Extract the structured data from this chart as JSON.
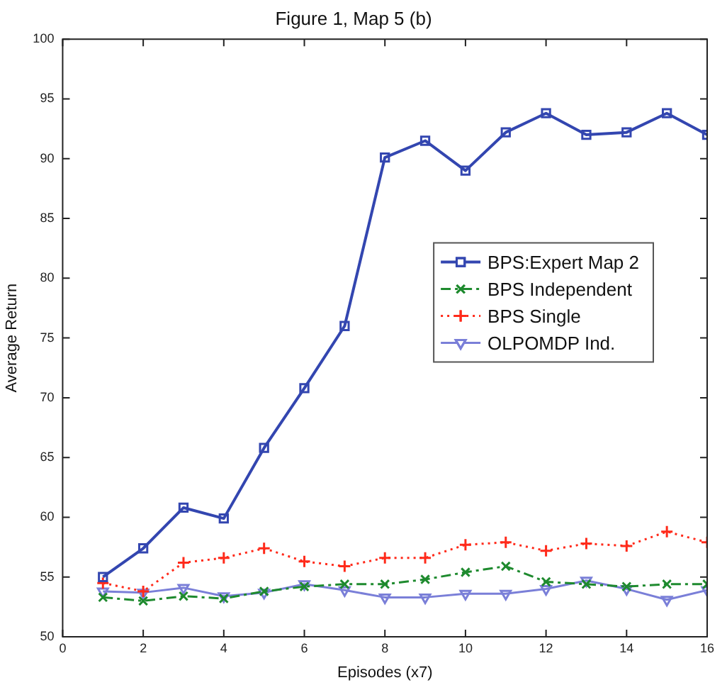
{
  "chart_data": {
    "type": "line",
    "title": "Figure 1, Map 5 (b)",
    "xlabel": "Episodes (x7)",
    "ylabel": "Average Return",
    "x": [
      1,
      2,
      3,
      4,
      5,
      6,
      7,
      8,
      9,
      10,
      11,
      12,
      13,
      14,
      15,
      16
    ],
    "series": [
      {
        "name": "BPS:Expert Map 2",
        "color": "#3346b0",
        "marker": "square",
        "line_style": "solid",
        "values": [
          55,
          57.4,
          60.8,
          59.9,
          65.8,
          70.8,
          76,
          90.1,
          91.5,
          89,
          92.2,
          93.8,
          92,
          92.2,
          93.8,
          92
        ]
      },
      {
        "name": "BPS Independent",
        "color": "#1e8a2e",
        "marker": "cross",
        "line_style": "dashdot",
        "values": [
          53.3,
          53.0,
          53.4,
          53.2,
          53.8,
          54.2,
          54.4,
          54.4,
          54.8,
          55.4,
          55.9,
          54.6,
          54.4,
          54.2,
          54.4,
          54.4
        ]
      },
      {
        "name": "BPS Single",
        "color": "#ff2a1a",
        "marker": "plus",
        "line_style": "dotted",
        "values": [
          54.5,
          53.8,
          56.2,
          56.6,
          57.4,
          56.3,
          55.9,
          56.6,
          56.6,
          57.7,
          57.9,
          57.2,
          57.8,
          57.6,
          58.8,
          57.9
        ]
      },
      {
        "name": "OLPOMDP Ind.",
        "color": "#7a7fd8",
        "marker": "triangle-down",
        "line_style": "solid",
        "values": [
          53.8,
          53.7,
          54.1,
          53.4,
          53.7,
          54.4,
          53.9,
          53.3,
          53.3,
          53.6,
          53.6,
          54.0,
          54.7,
          54.0,
          53.1,
          53.9
        ]
      }
    ],
    "xlim": [
      0,
      16
    ],
    "xticks": [
      0,
      2,
      4,
      6,
      8,
      10,
      12,
      14,
      16
    ],
    "ylim": [
      50,
      100
    ],
    "yticks": [
      50,
      55,
      60,
      65,
      70,
      75,
      80,
      85,
      90,
      95,
      100
    ],
    "grid": false,
    "legend": "right"
  }
}
